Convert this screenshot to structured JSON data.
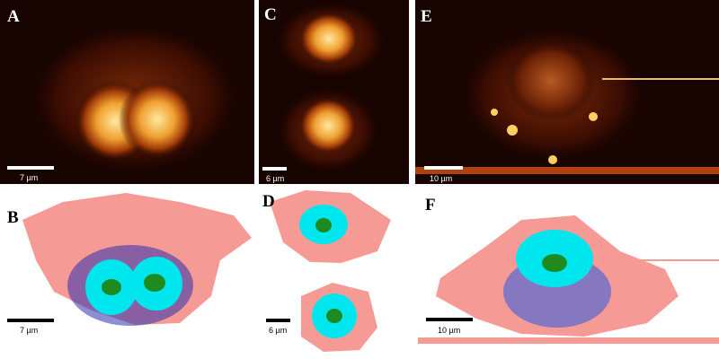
{
  "panels": [
    {
      "label": "A",
      "scale_bar": "7 µm"
    },
    {
      "label": "B",
      "scale_bar": "7 µm"
    },
    {
      "label": "C",
      "scale_bar": "6 µm"
    },
    {
      "label": "D",
      "scale_bar": "6 µm"
    },
    {
      "label": "E",
      "scale_bar": "10 µm"
    },
    {
      "label": "F",
      "scale_bar": "10 µm"
    }
  ]
}
